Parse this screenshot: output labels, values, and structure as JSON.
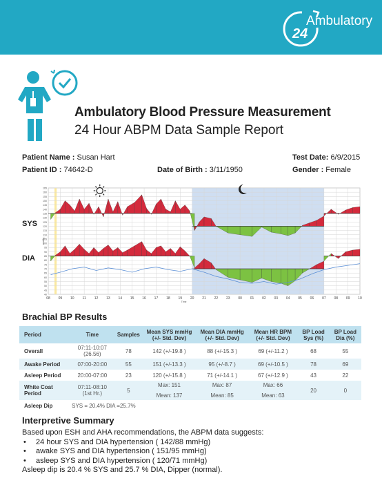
{
  "brand": {
    "logo_text": "Ambulatory",
    "logo_number": "24",
    "header_color": "#22a8c4"
  },
  "report": {
    "title": "Ambulatory Blood Pressure Measurement",
    "subtitle": "24 Hour ABPM Data Sample Report"
  },
  "patient": {
    "name_label": "Patient Name :",
    "name_value": "Susan Hart",
    "test_date_label": "Test Date:",
    "test_date_value": "6/9/2015",
    "id_label": "Patient ID :",
    "id_value": "74642-D",
    "dob_label": "Date of Birth :",
    "dob_value": "3/11/1950",
    "gender_label": "Gender :",
    "gender_value": "Female"
  },
  "chart_data": {
    "type": "area",
    "series_labels": {
      "sys": "SYS",
      "dia": "DIA"
    },
    "x_tick_labels": [
      "08",
      "09",
      "10",
      "11",
      "12",
      "13",
      "14",
      "15",
      "16",
      "17",
      "18",
      "19",
      "20",
      "21",
      "22",
      "23",
      "00",
      "01",
      "02",
      "03",
      "04",
      "05",
      "06",
      "07",
      "08",
      "09",
      "10"
    ],
    "y_tick_labels": [
      "165",
      "160",
      "155",
      "150",
      "145",
      "140",
      "135",
      "130",
      "125",
      "120",
      "115",
      "110",
      "105",
      "100",
      "95",
      "90",
      "85",
      "80",
      "75",
      "70",
      "65",
      "60",
      "55",
      "50",
      "45",
      "40"
    ],
    "xlabel": "Time",
    "ylabel": "mmHg",
    "colors": {
      "above": "#d42a3c",
      "below": "#7cc242",
      "night": "#c7d8ee",
      "white_coat": "#fbe9a0",
      "hr_line": "#5b8fd6"
    },
    "sys_threshold_day": 135,
    "sys_threshold_night": 120,
    "dia_threshold_day": 85,
    "dia_threshold_night": 70
  },
  "results": {
    "heading": "Brachial BP Results",
    "columns": [
      "Period",
      "Time",
      "Samples",
      "Mean SYS mmHg (+/- Std. Dev)",
      "Mean DIA mmHg (+/- Std. Dev)",
      "Mean HR BPM (+/- Std. Dev)",
      "BP Load Sys (%)",
      "BP Load Dia (%)"
    ],
    "overall": {
      "label": "Overall",
      "time1": "07:11-10:07",
      "time2": "(26.56)",
      "samples": "78",
      "sys": "142 (+/-19.8 )",
      "dia": "88 (+/-15.3 )",
      "hr": "69 (+/-11.2 )",
      "load_sys": "68",
      "load_dia": "55"
    },
    "awake": {
      "label": "Awake Period",
      "time": "07:00-20:00",
      "samples": "55",
      "sys": "151 (+/-13.3 )",
      "dia": "95 (+/-8.7 )",
      "hr": "69 (+/-10.5 )",
      "load_sys": "78",
      "load_dia": "69"
    },
    "asleep": {
      "label": "Asleep Period",
      "time": "20:00-07:00",
      "samples": "23",
      "sys": "120 (+/-15.8 )",
      "dia": "71 (+/-14.1 )",
      "hr": "67 (+/-12.9 )",
      "load_sys": "43",
      "load_dia": "22"
    },
    "white_coat": {
      "label": "White Coat Period",
      "time1": "07:11-08:10",
      "time2": "(1st Hr.)",
      "samples": "5",
      "sys_max": "Max: 151",
      "sys_mean": "Mean: 137",
      "dia_max": "Max: 87",
      "dia_mean": "Mean: 85",
      "hr_max": "Max: 66",
      "hr_mean": "Mean: 63",
      "load_sys": "20",
      "load_dia": "0"
    },
    "asleep_dip": {
      "label": "Asleep Dip",
      "value": "SYS = 20.4% DIA =25.7%"
    }
  },
  "summary": {
    "heading": "Interpretive Summary",
    "intro": "Based upon ESH and AHA recommendations, the ABPM data suggests:",
    "bullets": [
      "24 hour SYS and DIA hypertension ( 142/88 mmHg)",
      "awake SYS and DIA hypertension ( 151/95 mmHg)",
      "asleep SYS and DIA hypertension ( 120/71 mmHg)"
    ],
    "conclusion": "Asleep dip is 20.4 % SYS and 25.7 % DIA, Dipper (normal)."
  }
}
